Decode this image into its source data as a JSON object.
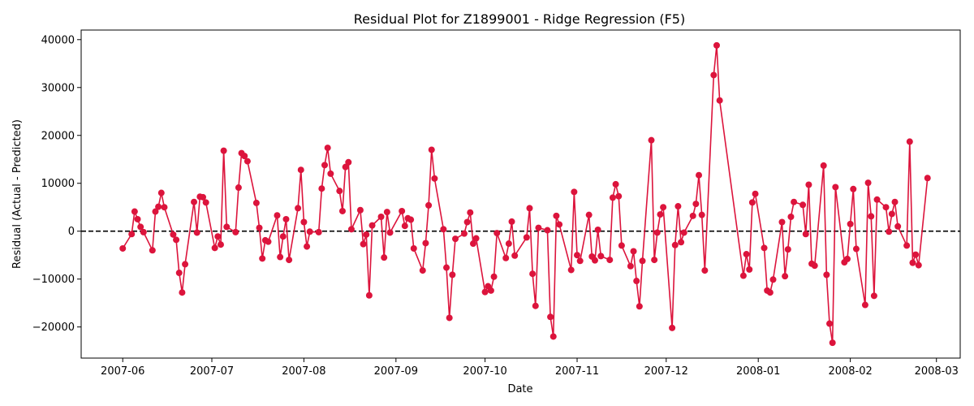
{
  "chart_data": {
    "type": "line",
    "title": "Residual Plot for Z1899001 - Ridge Regression (F5)",
    "xlabel": "Date",
    "ylabel": "Residual (Actual - Predicted)",
    "x_ticks": [
      "2007-06-01",
      "2007-07-01",
      "2007-08-01",
      "2007-09-01",
      "2007-10-01",
      "2007-11-01",
      "2007-12-01",
      "2008-01-01",
      "2008-02-01",
      "2008-03-01"
    ],
    "x_tick_labels": [
      "2007-06",
      "2007-07",
      "2007-08",
      "2007-09",
      "2007-10",
      "2007-11",
      "2007-12",
      "2008-01",
      "2008-02",
      "2008-03"
    ],
    "xlim": [
      "2007-05-18",
      "2008-03-09"
    ],
    "y_ticks": [
      -20000,
      -10000,
      0,
      10000,
      20000,
      30000,
      40000
    ],
    "y_tick_labels": [
      "−20000",
      "−10000",
      "0",
      "10000",
      "20000",
      "30000",
      "40000"
    ],
    "ylim": [
      -26500,
      42000
    ],
    "reference_line": {
      "y": 0,
      "style": "dashed",
      "color": "#000000"
    },
    "grid": false,
    "series": [
      {
        "color": "#dc143c",
        "points": [
          [
            "2007-06-01",
            -3600
          ],
          [
            "2007-06-04",
            -600
          ],
          [
            "2007-06-05",
            4100
          ],
          [
            "2007-06-06",
            2500
          ],
          [
            "2007-06-07",
            900
          ],
          [
            "2007-06-08",
            -200
          ],
          [
            "2007-06-11",
            -4000
          ],
          [
            "2007-06-12",
            4100
          ],
          [
            "2007-06-13",
            5100
          ],
          [
            "2007-06-14",
            8000
          ],
          [
            "2007-06-15",
            5000
          ],
          [
            "2007-06-18",
            -700
          ],
          [
            "2007-06-19",
            -1800
          ],
          [
            "2007-06-20",
            -8700
          ],
          [
            "2007-06-21",
            -12800
          ],
          [
            "2007-06-22",
            -6900
          ],
          [
            "2007-06-25",
            6100
          ],
          [
            "2007-06-26",
            -300
          ],
          [
            "2007-06-27",
            7200
          ],
          [
            "2007-06-28",
            7100
          ],
          [
            "2007-06-29",
            6000
          ],
          [
            "2007-07-02",
            -3500
          ],
          [
            "2007-07-03",
            -1100
          ],
          [
            "2007-07-04",
            -2800
          ],
          [
            "2007-07-05",
            16800
          ],
          [
            "2007-07-06",
            900
          ],
          [
            "2007-07-09",
            -200
          ],
          [
            "2007-07-10",
            9100
          ],
          [
            "2007-07-11",
            16300
          ],
          [
            "2007-07-12",
            15700
          ],
          [
            "2007-07-13",
            14600
          ],
          [
            "2007-07-16",
            5900
          ],
          [
            "2007-07-17",
            700
          ],
          [
            "2007-07-18",
            -5700
          ],
          [
            "2007-07-19",
            -1900
          ],
          [
            "2007-07-20",
            -2200
          ],
          [
            "2007-07-23",
            3300
          ],
          [
            "2007-07-24",
            -5400
          ],
          [
            "2007-07-25",
            -1100
          ],
          [
            "2007-07-26",
            2500
          ],
          [
            "2007-07-27",
            -6000
          ],
          [
            "2007-07-30",
            4800
          ],
          [
            "2007-07-31",
            12800
          ],
          [
            "2007-08-01",
            1900
          ],
          [
            "2007-08-02",
            -3200
          ],
          [
            "2007-08-03",
            -100
          ],
          [
            "2007-08-06",
            -200
          ],
          [
            "2007-08-07",
            8900
          ],
          [
            "2007-08-08",
            13800
          ],
          [
            "2007-08-09",
            17400
          ],
          [
            "2007-08-10",
            12000
          ],
          [
            "2007-08-13",
            8400
          ],
          [
            "2007-08-14",
            4200
          ],
          [
            "2007-08-15",
            13400
          ],
          [
            "2007-08-16",
            14400
          ],
          [
            "2007-08-17",
            400
          ],
          [
            "2007-08-20",
            4400
          ],
          [
            "2007-08-21",
            -2700
          ],
          [
            "2007-08-22",
            -700
          ],
          [
            "2007-08-23",
            -13400
          ],
          [
            "2007-08-24",
            1200
          ],
          [
            "2007-08-27",
            3000
          ],
          [
            "2007-08-28",
            -5500
          ],
          [
            "2007-08-29",
            4000
          ],
          [
            "2007-08-30",
            -300
          ],
          [
            "2007-09-03",
            4200
          ],
          [
            "2007-09-04",
            1100
          ],
          [
            "2007-09-05",
            2700
          ],
          [
            "2007-09-06",
            2400
          ],
          [
            "2007-09-07",
            -3600
          ],
          [
            "2007-09-10",
            -8200
          ],
          [
            "2007-09-11",
            -2500
          ],
          [
            "2007-09-12",
            5400
          ],
          [
            "2007-09-13",
            17000
          ],
          [
            "2007-09-14",
            11000
          ],
          [
            "2007-09-17",
            400
          ],
          [
            "2007-09-18",
            -7600
          ],
          [
            "2007-09-19",
            -18100
          ],
          [
            "2007-09-20",
            -9100
          ],
          [
            "2007-09-21",
            -1600
          ],
          [
            "2007-09-24",
            -500
          ],
          [
            "2007-09-25",
            1900
          ],
          [
            "2007-09-26",
            3900
          ],
          [
            "2007-09-27",
            -2600
          ],
          [
            "2007-09-28",
            -1500
          ],
          [
            "2007-10-01",
            -12700
          ],
          [
            "2007-10-02",
            -11500
          ],
          [
            "2007-10-03",
            -12400
          ],
          [
            "2007-10-04",
            -9500
          ],
          [
            "2007-10-05",
            -400
          ],
          [
            "2007-10-08",
            -5600
          ],
          [
            "2007-10-09",
            -2600
          ],
          [
            "2007-10-10",
            2000
          ],
          [
            "2007-10-11",
            -5100
          ],
          [
            "2007-10-15",
            -1300
          ],
          [
            "2007-10-16",
            4800
          ],
          [
            "2007-10-17",
            -8900
          ],
          [
            "2007-10-18",
            -15600
          ],
          [
            "2007-10-19",
            700
          ],
          [
            "2007-10-22",
            200
          ],
          [
            "2007-10-23",
            -17900
          ],
          [
            "2007-10-24",
            -22000
          ],
          [
            "2007-10-25",
            3200
          ],
          [
            "2007-10-26",
            1400
          ],
          [
            "2007-10-30",
            -8100
          ],
          [
            "2007-10-31",
            8200
          ],
          [
            "2007-11-01",
            -5000
          ],
          [
            "2007-11-02",
            -6200
          ],
          [
            "2007-11-05",
            3400
          ],
          [
            "2007-11-06",
            -5300
          ],
          [
            "2007-11-07",
            -6100
          ],
          [
            "2007-11-08",
            300
          ],
          [
            "2007-11-09",
            -5200
          ],
          [
            "2007-11-12",
            -6000
          ],
          [
            "2007-11-13",
            7000
          ],
          [
            "2007-11-14",
            9800
          ],
          [
            "2007-11-15",
            7300
          ],
          [
            "2007-11-16",
            -3000
          ],
          [
            "2007-11-19",
            -7300
          ],
          [
            "2007-11-20",
            -4200
          ],
          [
            "2007-11-21",
            -10400
          ],
          [
            "2007-11-22",
            -15700
          ],
          [
            "2007-11-23",
            -6200
          ],
          [
            "2007-11-26",
            19000
          ],
          [
            "2007-11-27",
            -6000
          ],
          [
            "2007-11-28",
            -300
          ],
          [
            "2007-11-29",
            3500
          ],
          [
            "2007-11-30",
            5000
          ],
          [
            "2007-12-03",
            -20200
          ],
          [
            "2007-12-04",
            -2900
          ],
          [
            "2007-12-05",
            5200
          ],
          [
            "2007-12-06",
            -2300
          ],
          [
            "2007-12-07",
            -300
          ],
          [
            "2007-12-10",
            3200
          ],
          [
            "2007-12-11",
            5700
          ],
          [
            "2007-12-12",
            11700
          ],
          [
            "2007-12-13",
            3400
          ],
          [
            "2007-12-14",
            -8200
          ],
          [
            "2007-12-17",
            32600
          ],
          [
            "2007-12-18",
            38800
          ],
          [
            "2007-12-19",
            27300
          ],
          [
            "2007-12-27",
            -9300
          ],
          [
            "2007-12-28",
            -4800
          ],
          [
            "2007-12-29",
            -8000
          ],
          [
            "2007-12-30",
            6000
          ],
          [
            "2007-12-31",
            7800
          ],
          [
            "2008-01-03",
            -3500
          ],
          [
            "2008-01-04",
            -12400
          ],
          [
            "2008-01-05",
            -12800
          ],
          [
            "2008-01-06",
            -10100
          ],
          [
            "2008-01-09",
            1900
          ],
          [
            "2008-01-10",
            -9400
          ],
          [
            "2008-01-11",
            -3800
          ],
          [
            "2008-01-12",
            3000
          ],
          [
            "2008-01-13",
            6100
          ],
          [
            "2008-01-16",
            5500
          ],
          [
            "2008-01-17",
            -600
          ],
          [
            "2008-01-18",
            9700
          ],
          [
            "2008-01-19",
            -6800
          ],
          [
            "2008-01-20",
            -7200
          ],
          [
            "2008-01-23",
            13700
          ],
          [
            "2008-01-24",
            -9100
          ],
          [
            "2008-01-25",
            -19300
          ],
          [
            "2008-01-26",
            -23300
          ],
          [
            "2008-01-27",
            9200
          ],
          [
            "2008-01-30",
            -6500
          ],
          [
            "2008-01-31",
            -5800
          ],
          [
            "2008-02-01",
            1500
          ],
          [
            "2008-02-02",
            8800
          ],
          [
            "2008-02-03",
            -3700
          ],
          [
            "2008-02-06",
            -15400
          ],
          [
            "2008-02-07",
            10100
          ],
          [
            "2008-02-08",
            3100
          ],
          [
            "2008-02-09",
            -13500
          ],
          [
            "2008-02-10",
            6600
          ],
          [
            "2008-02-13",
            5000
          ],
          [
            "2008-02-14",
            -100
          ],
          [
            "2008-02-15",
            3600
          ],
          [
            "2008-02-16",
            6100
          ],
          [
            "2008-02-17",
            1000
          ],
          [
            "2008-02-20",
            -3000
          ],
          [
            "2008-02-21",
            18700
          ],
          [
            "2008-02-22",
            -6600
          ],
          [
            "2008-02-23",
            -4900
          ],
          [
            "2008-02-24",
            -7100
          ],
          [
            "2008-02-27",
            11100
          ]
        ]
      }
    ]
  }
}
